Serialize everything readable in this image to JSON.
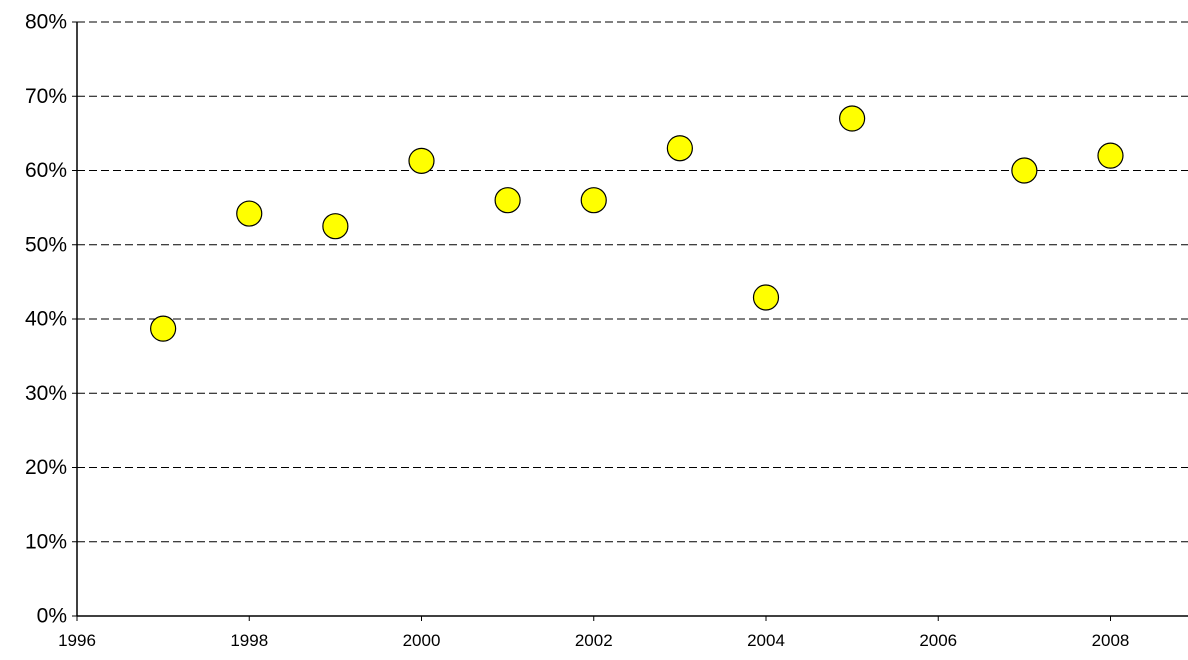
{
  "chart_data": {
    "type": "scatter",
    "title": "",
    "xlabel": "",
    "ylabel": "",
    "xlim": [
      1996,
      2008.9
    ],
    "ylim": [
      0,
      0.8
    ],
    "x_ticks": [
      1996,
      1998,
      2000,
      2002,
      2004,
      2006,
      2008
    ],
    "x_tick_labels": [
      "1996",
      "1998",
      "2000",
      "2002",
      "2004",
      "2006",
      "2008"
    ],
    "y_ticks": [
      0,
      0.1,
      0.2,
      0.3,
      0.4,
      0.5,
      0.6,
      0.7,
      0.8
    ],
    "y_tick_labels": [
      "0%",
      "10%",
      "20%",
      "30%",
      "40%",
      "50%",
      "60%",
      "70%",
      "80%"
    ],
    "grid": "horizontal-dashed",
    "legend": "none",
    "marker_color": "#FFFF00",
    "marker_edge_color": "#000000",
    "points": [
      {
        "x": 1997,
        "y": 0.387
      },
      {
        "x": 1998,
        "y": 0.542
      },
      {
        "x": 1999,
        "y": 0.525
      },
      {
        "x": 2000,
        "y": 0.613
      },
      {
        "x": 2001,
        "y": 0.56
      },
      {
        "x": 2002,
        "y": 0.56
      },
      {
        "x": 2003,
        "y": 0.63
      },
      {
        "x": 2004,
        "y": 0.429
      },
      {
        "x": 2005,
        "y": 0.67
      },
      {
        "x": 2007,
        "y": 0.6
      },
      {
        "x": 2008,
        "y": 0.62
      }
    ]
  }
}
